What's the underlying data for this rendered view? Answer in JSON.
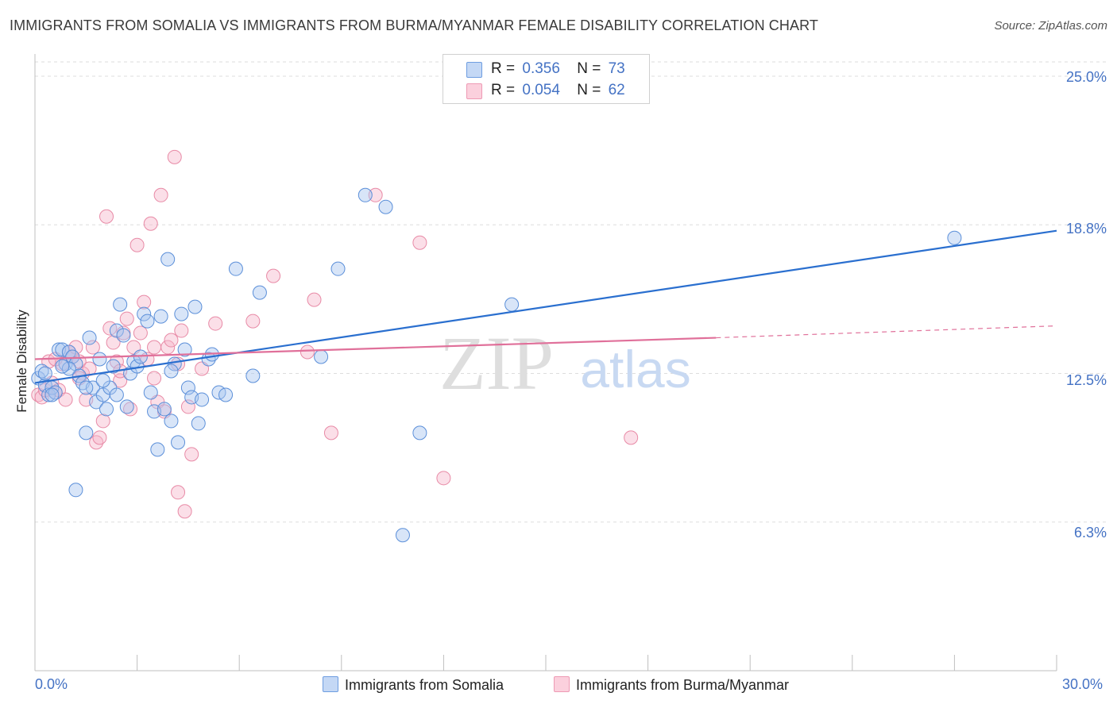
{
  "title": "IMMIGRANTS FROM SOMALIA VS IMMIGRANTS FROM BURMA/MYANMAR FEMALE DISABILITY CORRELATION CHART",
  "source": "Source: ZipAtlas.com",
  "watermark": {
    "zip": "ZIP",
    "atlas": "atlas"
  },
  "legend": {
    "rows": [
      {
        "r_label": "R =",
        "r_value": "0.356",
        "n_label": "N =",
        "n_value": "73",
        "color": "#a9c6f0"
      },
      {
        "r_label": "R =",
        "r_value": "0.054",
        "n_label": "N =",
        "n_value": "62",
        "color": "#f6b8cb"
      }
    ]
  },
  "bottom_legend": {
    "somalia": "Immigrants from Somalia",
    "burma": "Immigrants from Burma/Myanmar"
  },
  "colors": {
    "somalia_fill": "#a9c6f0",
    "somalia_stroke": "#5b8fd9",
    "somalia_line": "#2a6fcf",
    "burma_fill": "#f6b8cb",
    "burma_stroke": "#e88aa6",
    "burma_line": "#e0709a",
    "tick_text": "#4472c4",
    "grid": "#dddddd"
  },
  "chart_data": {
    "type": "scatter",
    "ylabel": "Female Disability",
    "xlabel": "",
    "x_tick_labels": [
      "0.0%",
      "30.0%"
    ],
    "y_tick_labels": [
      "25.0%",
      "18.8%",
      "12.5%",
      "6.3%"
    ],
    "y_ticks": [
      25.0,
      18.75,
      12.5,
      6.25
    ],
    "xlim": [
      0,
      30
    ],
    "ylim": [
      0,
      25.6
    ],
    "grid": true,
    "legend_position": "top-center",
    "series": [
      {
        "name": "Immigrants from Somalia",
        "trend": {
          "x": [
            0.0,
            30.0
          ],
          "y": [
            12.1,
            18.5
          ]
        },
        "points": [
          [
            0.1,
            12.3
          ],
          [
            0.2,
            12.6
          ],
          [
            0.3,
            12.0
          ],
          [
            0.4,
            11.6
          ],
          [
            0.5,
            11.9
          ],
          [
            0.6,
            11.7
          ],
          [
            0.7,
            13.5
          ],
          [
            0.8,
            13.5
          ],
          [
            0.9,
            12.9
          ],
          [
            1.0,
            13.4
          ],
          [
            1.1,
            13.2
          ],
          [
            1.2,
            12.9
          ],
          [
            1.3,
            12.4
          ],
          [
            1.4,
            12.1
          ],
          [
            1.5,
            10.0
          ],
          [
            1.6,
            14.0
          ],
          [
            1.7,
            11.9
          ],
          [
            1.8,
            11.3
          ],
          [
            1.9,
            13.1
          ],
          [
            2.0,
            11.6
          ],
          [
            2.1,
            11.0
          ],
          [
            2.2,
            11.9
          ],
          [
            2.3,
            12.8
          ],
          [
            2.4,
            14.3
          ],
          [
            2.5,
            15.4
          ],
          [
            2.6,
            14.1
          ],
          [
            2.7,
            11.1
          ],
          [
            2.8,
            12.5
          ],
          [
            2.9,
            13.0
          ],
          [
            3.0,
            12.8
          ],
          [
            3.2,
            15.0
          ],
          [
            3.3,
            14.7
          ],
          [
            3.4,
            11.7
          ],
          [
            3.5,
            10.9
          ],
          [
            3.6,
            9.3
          ],
          [
            3.7,
            14.9
          ],
          [
            3.8,
            11.0
          ],
          [
            3.9,
            17.3
          ],
          [
            4.0,
            10.5
          ],
          [
            4.1,
            12.9
          ],
          [
            4.2,
            9.6
          ],
          [
            4.3,
            15.0
          ],
          [
            4.4,
            13.5
          ],
          [
            4.5,
            11.9
          ],
          [
            4.6,
            11.5
          ],
          [
            4.7,
            15.3
          ],
          [
            4.8,
            10.4
          ],
          [
            4.9,
            11.4
          ],
          [
            5.1,
            13.1
          ],
          [
            5.2,
            13.3
          ],
          [
            5.4,
            11.7
          ],
          [
            5.6,
            11.6
          ],
          [
            5.9,
            16.9
          ],
          [
            6.4,
            12.4
          ],
          [
            6.6,
            15.9
          ],
          [
            8.4,
            13.2
          ],
          [
            8.9,
            16.9
          ],
          [
            9.7,
            20.0
          ],
          [
            10.3,
            19.5
          ],
          [
            10.8,
            5.7
          ],
          [
            11.3,
            10.0
          ],
          [
            14.0,
            15.4
          ],
          [
            27.0,
            18.2
          ],
          [
            1.2,
            7.6
          ],
          [
            2.4,
            11.6
          ],
          [
            3.1,
            13.2
          ],
          [
            0.5,
            11.6
          ],
          [
            1.0,
            12.7
          ],
          [
            2.0,
            12.2
          ],
          [
            0.3,
            12.5
          ],
          [
            4.0,
            12.6
          ],
          [
            1.5,
            11.9
          ],
          [
            0.8,
            12.8
          ]
        ]
      },
      {
        "name": "Immigrants from Burma/Myanmar",
        "trend": {
          "x": [
            0.0,
            20.0
          ],
          "y": [
            13.1,
            14.0
          ]
        },
        "trend_dashed": {
          "x": [
            20.0,
            30.0
          ],
          "y": [
            14.0,
            14.5
          ]
        },
        "points": [
          [
            0.1,
            11.6
          ],
          [
            0.2,
            11.5
          ],
          [
            0.3,
            11.8
          ],
          [
            0.4,
            13.0
          ],
          [
            0.5,
            12.1
          ],
          [
            0.6,
            11.7
          ],
          [
            0.7,
            11.8
          ],
          [
            0.8,
            12.9
          ],
          [
            0.9,
            11.4
          ],
          [
            1.0,
            13.4
          ],
          [
            1.1,
            13.2
          ],
          [
            1.2,
            13.6
          ],
          [
            1.3,
            13.0
          ],
          [
            1.4,
            12.5
          ],
          [
            1.5,
            11.4
          ],
          [
            1.6,
            12.7
          ],
          [
            1.7,
            13.6
          ],
          [
            1.8,
            9.6
          ],
          [
            1.9,
            9.8
          ],
          [
            2.0,
            10.5
          ],
          [
            2.1,
            19.1
          ],
          [
            2.2,
            14.4
          ],
          [
            2.3,
            13.8
          ],
          [
            2.4,
            13.0
          ],
          [
            2.5,
            12.2
          ],
          [
            2.6,
            14.2
          ],
          [
            2.7,
            14.8
          ],
          [
            2.8,
            11.0
          ],
          [
            2.9,
            13.6
          ],
          [
            3.0,
            17.9
          ],
          [
            3.1,
            14.2
          ],
          [
            3.2,
            15.5
          ],
          [
            3.3,
            13.1
          ],
          [
            3.4,
            18.8
          ],
          [
            3.5,
            13.6
          ],
          [
            3.6,
            11.3
          ],
          [
            3.7,
            20.0
          ],
          [
            3.8,
            10.9
          ],
          [
            3.9,
            13.6
          ],
          [
            4.0,
            13.9
          ],
          [
            4.1,
            21.6
          ],
          [
            4.2,
            7.5
          ],
          [
            4.3,
            14.3
          ],
          [
            4.4,
            6.7
          ],
          [
            4.5,
            11.1
          ],
          [
            4.6,
            9.1
          ],
          [
            4.9,
            12.7
          ],
          [
            5.3,
            14.6
          ],
          [
            6.4,
            14.7
          ],
          [
            7.0,
            16.6
          ],
          [
            8.0,
            13.4
          ],
          [
            8.2,
            15.6
          ],
          [
            8.7,
            10.0
          ],
          [
            10.0,
            20.0
          ],
          [
            11.3,
            18.0
          ],
          [
            12.0,
            8.1
          ],
          [
            17.5,
            9.8
          ],
          [
            0.6,
            13.1
          ],
          [
            1.3,
            12.3
          ],
          [
            2.5,
            12.6
          ],
          [
            3.5,
            12.3
          ],
          [
            4.2,
            12.9
          ]
        ]
      }
    ]
  }
}
